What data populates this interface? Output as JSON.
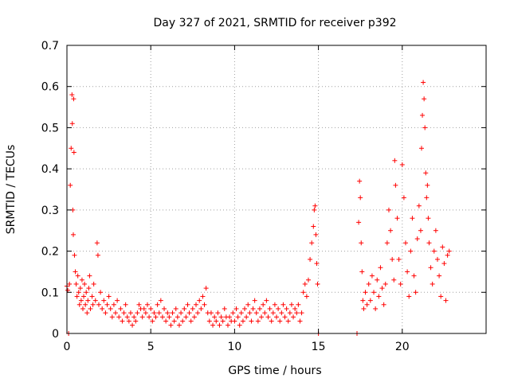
{
  "chart_data": {
    "type": "scatter",
    "title": "Day 327 of 2021, SRMTID for receiver p392",
    "xlabel": "GPS time / hours",
    "ylabel": "SRMTID / TECUs",
    "xlim": [
      0,
      25
    ],
    "ylim": [
      0,
      0.7
    ],
    "xticks": [
      0,
      5,
      10,
      15,
      20
    ],
    "xtick_labels": [
      "0",
      "5",
      "10",
      "15",
      "20"
    ],
    "yticks": [
      0,
      0.1,
      0.2,
      0.3,
      0.4,
      0.5,
      0.6,
      0.7
    ],
    "ytick_labels": [
      "0",
      "0.1",
      "0.2",
      "0.3",
      "0.4",
      "0.5",
      "0.6",
      "0.7"
    ],
    "grid": true,
    "marker": "+",
    "color": "#ff0000",
    "series": [
      {
        "name": "SRMTID",
        "points": [
          [
            0.0,
            0.115
          ],
          [
            0.05,
            0.105
          ],
          [
            0.1,
            0.0
          ],
          [
            0.15,
            0.12
          ],
          [
            0.2,
            0.36
          ],
          [
            0.25,
            0.45
          ],
          [
            0.3,
            0.58
          ],
          [
            0.32,
            0.51
          ],
          [
            0.35,
            0.3
          ],
          [
            0.38,
            0.24
          ],
          [
            0.4,
            0.57
          ],
          [
            0.42,
            0.44
          ],
          [
            0.45,
            0.19
          ],
          [
            0.5,
            0.15
          ],
          [
            0.55,
            0.12
          ],
          [
            0.6,
            0.09
          ],
          [
            0.65,
            0.14
          ],
          [
            0.7,
            0.1
          ],
          [
            0.75,
            0.07
          ],
          [
            0.8,
            0.11
          ],
          [
            0.85,
            0.08
          ],
          [
            0.9,
            0.13
          ],
          [
            0.95,
            0.06
          ],
          [
            1.0,
            0.09
          ],
          [
            1.05,
            0.12
          ],
          [
            1.1,
            0.07
          ],
          [
            1.15,
            0.1
          ],
          [
            1.2,
            0.05
          ],
          [
            1.25,
            0.08
          ],
          [
            1.3,
            0.11
          ],
          [
            1.35,
            0.14
          ],
          [
            1.4,
            0.06
          ],
          [
            1.5,
            0.09
          ],
          [
            1.55,
            0.07
          ],
          [
            1.6,
            0.12
          ],
          [
            1.7,
            0.08
          ],
          [
            1.8,
            0.22
          ],
          [
            1.85,
            0.19
          ],
          [
            1.9,
            0.07
          ],
          [
            2.0,
            0.1
          ],
          [
            2.1,
            0.06
          ],
          [
            2.2,
            0.08
          ],
          [
            2.3,
            0.05
          ],
          [
            2.4,
            0.07
          ],
          [
            2.5,
            0.09
          ],
          [
            2.6,
            0.06
          ],
          [
            2.7,
            0.04
          ],
          [
            2.8,
            0.07
          ],
          [
            2.9,
            0.05
          ],
          [
            3.0,
            0.08
          ],
          [
            3.1,
            0.04
          ],
          [
            3.2,
            0.06
          ],
          [
            3.3,
            0.03
          ],
          [
            3.4,
            0.05
          ],
          [
            3.5,
            0.07
          ],
          [
            3.6,
            0.04
          ],
          [
            3.7,
            0.03
          ],
          [
            3.8,
            0.05
          ],
          [
            3.9,
            0.02
          ],
          [
            4.0,
            0.04
          ],
          [
            4.1,
            0.03
          ],
          [
            4.2,
            0.05
          ],
          [
            4.3,
            0.07
          ],
          [
            4.4,
            0.06
          ],
          [
            4.5,
            0.04
          ],
          [
            4.6,
            0.06
          ],
          [
            4.7,
            0.05
          ],
          [
            4.8,
            0.07
          ],
          [
            4.9,
            0.04
          ],
          [
            5.0,
            0.06
          ],
          [
            5.1,
            0.03
          ],
          [
            5.2,
            0.05
          ],
          [
            5.3,
            0.04
          ],
          [
            5.4,
            0.07
          ],
          [
            5.5,
            0.05
          ],
          [
            5.6,
            0.08
          ],
          [
            5.7,
            0.04
          ],
          [
            5.8,
            0.06
          ],
          [
            5.9,
            0.03
          ],
          [
            6.0,
            0.05
          ],
          [
            6.1,
            0.04
          ],
          [
            6.2,
            0.02
          ],
          [
            6.3,
            0.05
          ],
          [
            6.4,
            0.03
          ],
          [
            6.5,
            0.06
          ],
          [
            6.6,
            0.04
          ],
          [
            6.7,
            0.02
          ],
          [
            6.8,
            0.05
          ],
          [
            6.9,
            0.03
          ],
          [
            7.0,
            0.06
          ],
          [
            7.1,
            0.04
          ],
          [
            7.2,
            0.07
          ],
          [
            7.3,
            0.05
          ],
          [
            7.4,
            0.03
          ],
          [
            7.5,
            0.06
          ],
          [
            7.6,
            0.04
          ],
          [
            7.7,
            0.07
          ],
          [
            7.8,
            0.05
          ],
          [
            7.9,
            0.08
          ],
          [
            8.0,
            0.06
          ],
          [
            8.1,
            0.09
          ],
          [
            8.2,
            0.07
          ],
          [
            8.3,
            0.11
          ],
          [
            8.4,
            0.05
          ],
          [
            8.5,
            0.03
          ],
          [
            8.6,
            0.05
          ],
          [
            8.7,
            0.02
          ],
          [
            8.8,
            0.04
          ],
          [
            8.9,
            0.03
          ],
          [
            9.0,
            0.05
          ],
          [
            9.1,
            0.02
          ],
          [
            9.2,
            0.04
          ],
          [
            9.3,
            0.03
          ],
          [
            9.4,
            0.06
          ],
          [
            9.5,
            0.04
          ],
          [
            9.6,
            0.02
          ],
          [
            9.7,
            0.04
          ],
          [
            9.8,
            0.03
          ],
          [
            9.9,
            0.05
          ],
          [
            10.0,
            0.03
          ],
          [
            10.1,
            0.06
          ],
          [
            10.2,
            0.04
          ],
          [
            10.3,
            0.02
          ],
          [
            10.4,
            0.05
          ],
          [
            10.5,
            0.03
          ],
          [
            10.6,
            0.06
          ],
          [
            10.7,
            0.04
          ],
          [
            10.8,
            0.07
          ],
          [
            10.9,
            0.05
          ],
          [
            11.0,
            0.03
          ],
          [
            11.1,
            0.06
          ],
          [
            11.2,
            0.08
          ],
          [
            11.3,
            0.05
          ],
          [
            11.4,
            0.03
          ],
          [
            11.5,
            0.06
          ],
          [
            11.6,
            0.04
          ],
          [
            11.7,
            0.07
          ],
          [
            11.8,
            0.05
          ],
          [
            11.9,
            0.08
          ],
          [
            12.0,
            0.04
          ],
          [
            12.1,
            0.06
          ],
          [
            12.2,
            0.03
          ],
          [
            12.3,
            0.05
          ],
          [
            12.4,
            0.07
          ],
          [
            12.5,
            0.04
          ],
          [
            12.6,
            0.06
          ],
          [
            12.7,
            0.03
          ],
          [
            12.8,
            0.05
          ],
          [
            12.9,
            0.07
          ],
          [
            13.0,
            0.04
          ],
          [
            13.1,
            0.06
          ],
          [
            13.2,
            0.03
          ],
          [
            13.3,
            0.05
          ],
          [
            13.4,
            0.07
          ],
          [
            13.5,
            0.04
          ],
          [
            13.6,
            0.06
          ],
          [
            13.7,
            0.05
          ],
          [
            13.8,
            0.07
          ],
          [
            13.9,
            0.03
          ],
          [
            14.0,
            0.05
          ],
          [
            14.1,
            0.1
          ],
          [
            14.2,
            0.12
          ],
          [
            14.3,
            0.09
          ],
          [
            14.4,
            0.13
          ],
          [
            14.5,
            0.18
          ],
          [
            14.6,
            0.22
          ],
          [
            14.7,
            0.26
          ],
          [
            14.75,
            0.3
          ],
          [
            14.8,
            0.31
          ],
          [
            14.85,
            0.24
          ],
          [
            14.9,
            0.17
          ],
          [
            14.95,
            0.12
          ],
          [
            15.0,
            0.0
          ],
          [
            17.3,
            0.0
          ],
          [
            17.4,
            0.27
          ],
          [
            17.45,
            0.37
          ],
          [
            17.5,
            0.33
          ],
          [
            17.55,
            0.22
          ],
          [
            17.6,
            0.15
          ],
          [
            17.65,
            0.08
          ],
          [
            17.7,
            0.06
          ],
          [
            17.8,
            0.1
          ],
          [
            17.9,
            0.07
          ],
          [
            18.0,
            0.12
          ],
          [
            18.1,
            0.08
          ],
          [
            18.2,
            0.14
          ],
          [
            18.3,
            0.1
          ],
          [
            18.4,
            0.06
          ],
          [
            18.5,
            0.13
          ],
          [
            18.6,
            0.09
          ],
          [
            18.7,
            0.16
          ],
          [
            18.8,
            0.11
          ],
          [
            18.9,
            0.07
          ],
          [
            19.0,
            0.12
          ],
          [
            19.1,
            0.22
          ],
          [
            19.2,
            0.3
          ],
          [
            19.3,
            0.25
          ],
          [
            19.4,
            0.18
          ],
          [
            19.5,
            0.13
          ],
          [
            19.55,
            0.42
          ],
          [
            19.6,
            0.36
          ],
          [
            19.7,
            0.28
          ],
          [
            19.8,
            0.18
          ],
          [
            19.9,
            0.12
          ],
          [
            20.0,
            0.41
          ],
          [
            20.1,
            0.33
          ],
          [
            20.2,
            0.22
          ],
          [
            20.3,
            0.15
          ],
          [
            20.4,
            0.09
          ],
          [
            20.5,
            0.2
          ],
          [
            20.6,
            0.28
          ],
          [
            20.7,
            0.14
          ],
          [
            20.8,
            0.1
          ],
          [
            20.9,
            0.23
          ],
          [
            21.0,
            0.31
          ],
          [
            21.1,
            0.25
          ],
          [
            21.15,
            0.45
          ],
          [
            21.2,
            0.53
          ],
          [
            21.25,
            0.61
          ],
          [
            21.3,
            0.57
          ],
          [
            21.35,
            0.5
          ],
          [
            21.4,
            0.39
          ],
          [
            21.45,
            0.33
          ],
          [
            21.5,
            0.36
          ],
          [
            21.55,
            0.28
          ],
          [
            21.6,
            0.22
          ],
          [
            21.7,
            0.16
          ],
          [
            21.8,
            0.12
          ],
          [
            21.9,
            0.2
          ],
          [
            22.0,
            0.25
          ],
          [
            22.1,
            0.18
          ],
          [
            22.2,
            0.14
          ],
          [
            22.3,
            0.09
          ],
          [
            22.4,
            0.21
          ],
          [
            22.5,
            0.17
          ],
          [
            22.6,
            0.08
          ],
          [
            22.7,
            0.19
          ],
          [
            22.8,
            0.2
          ]
        ]
      }
    ]
  }
}
